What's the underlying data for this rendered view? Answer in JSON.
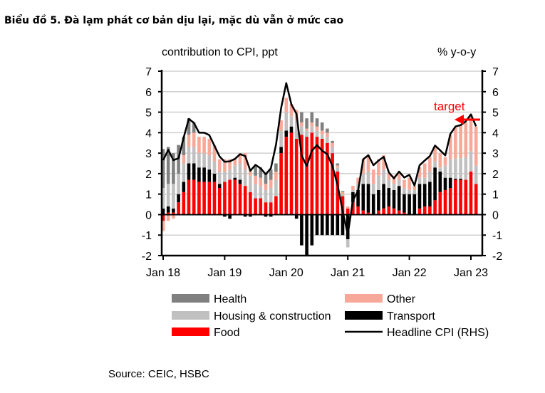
{
  "chart_data": {
    "type": "bar",
    "title": "Biểu đồ 5. Đà lạm phát cơ bản dịu lại, mặc dù vẫn ở mức cao",
    "left_axis_label": "contribution  to CPI, ppt",
    "right_axis_label": "% y-o-y",
    "source": "Source: CEIC, HSBC",
    "annotation": "target",
    "annotation_color": "#ff0000",
    "stacked": true,
    "x_start": "Jan 18",
    "x_end": "Feb 23",
    "x_ticks": [
      "Jan 18",
      "Jan 19",
      "Jan 20",
      "Jan 21",
      "Jan 22",
      "Jan 23"
    ],
    "y_ticks": [
      -2,
      -1,
      0,
      1,
      2,
      3,
      4,
      5,
      6,
      7
    ],
    "ylim": [
      -2,
      7
    ],
    "grid": true,
    "legend_placement": "bottom",
    "series": [
      {
        "name": "Food",
        "color": "#ff0000",
        "values": [
          -0.3,
          0.1,
          0.1,
          0.6,
          1.1,
          1.7,
          1.7,
          1.6,
          1.6,
          1.6,
          1.6,
          1.3,
          1.6,
          1.7,
          1.7,
          1.5,
          1.4,
          1.1,
          0.8,
          0.8,
          0.6,
          0.6,
          0.9,
          3.0,
          3.8,
          4.0,
          3.7,
          3.9,
          3.8,
          4.0,
          3.8,
          3.7,
          3.5,
          3.0,
          2.1,
          0.9,
          0.3,
          0.6,
          0.4,
          0.2,
          0.1,
          0.0,
          0.2,
          0.3,
          0.4,
          0.3,
          0.2,
          0.1,
          0.0,
          0.0,
          0.3,
          0.4,
          0.4,
          0.7,
          1.1,
          1.2,
          1.3,
          1.7,
          1.7,
          1.7,
          2.1,
          1.5
        ]
      },
      {
        "name": "Transport",
        "color": "#000000",
        "values": [
          0.3,
          0.3,
          0.2,
          0.4,
          0.5,
          0.8,
          0.8,
          0.7,
          0.7,
          0.6,
          0.4,
          0.2,
          -0.1,
          -0.2,
          0.1,
          0.2,
          -0.1,
          -0.1,
          0.0,
          0.0,
          -0.1,
          -0.1,
          0.0,
          0.3,
          0.3,
          0.3,
          -0.2,
          -1.5,
          -2.0,
          -1.5,
          -1.0,
          -1.0,
          -1.0,
          -1.0,
          -1.0,
          -1.0,
          -1.2,
          0.5,
          0.8,
          1.3,
          1.4,
          1.0,
          1.0,
          1.2,
          0.9,
          0.9,
          1.2,
          0.9,
          1.0,
          1.0,
          1.2,
          1.1,
          1.2,
          1.6,
          1.0,
          0.6,
          0.5,
          0.05,
          0.05,
          0.0,
          0.0,
          0.0
        ]
      },
      {
        "name": "Housing & construction",
        "color": "#c0c0c0",
        "values": [
          1.0,
          1.1,
          1.2,
          1.0,
          0.9,
          0.8,
          0.8,
          0.7,
          0.7,
          0.7,
          0.6,
          0.6,
          0.5,
          0.5,
          0.6,
          0.8,
          0.8,
          0.8,
          0.7,
          0.6,
          0.6,
          0.7,
          0.8,
          0.8,
          0.9,
          0.5,
          0.9,
          0.4,
          0.3,
          0.3,
          0.3,
          0.2,
          0.3,
          0.3,
          0.2,
          0.1,
          -0.4,
          0.1,
          0.3,
          0.5,
          0.6,
          0.5,
          0.7,
          0.7,
          0.4,
          0.3,
          0.3,
          0.3,
          0.2,
          0.2,
          0.3,
          0.3,
          0.5,
          0.3,
          0.2,
          0.6,
          0.9,
          1.0,
          1.0,
          1.1,
          1.0,
          0.9
        ]
      },
      {
        "name": "Other",
        "color": "#f8a898",
        "values": [
          -0.5,
          -0.3,
          -0.2,
          0.0,
          0.4,
          0.6,
          0.7,
          0.8,
          0.8,
          0.8,
          0.8,
          0.6,
          0.6,
          0.5,
          0.3,
          0.5,
          0.8,
          0.3,
          0.4,
          0.4,
          0.3,
          0.4,
          0.4,
          0.5,
          0.7,
          0.6,
          0.5,
          0.2,
          0.1,
          0.2,
          0.2,
          0.2,
          0.2,
          0.2,
          0.1,
          0.1,
          0.1,
          0.2,
          0.3,
          0.7,
          0.8,
          0.7,
          0.8,
          0.7,
          0.3,
          0.4,
          0.4,
          0.4,
          0.6,
          0.2,
          0.5,
          0.7,
          0.7,
          0.7,
          0.7,
          0.4,
          1.2,
          1.5,
          1.6,
          1.7,
          1.8,
          1.9
        ]
      },
      {
        "name": "Health",
        "color": "#808080",
        "values": [
          1.9,
          1.8,
          1.5,
          1.4,
          0.9,
          0.8,
          0.5,
          0.0,
          0.0,
          0.0,
          0.0,
          0.0,
          0,
          0,
          0,
          0,
          0,
          0,
          0.5,
          0.5,
          0.5,
          0.5,
          0.4,
          0.0,
          0,
          0,
          0,
          0.5,
          0.5,
          0.5,
          0.4,
          0.4,
          0.2,
          0.1,
          0.1,
          0.05,
          0,
          0,
          0,
          0,
          0,
          0,
          0,
          0,
          0,
          0,
          0,
          0,
          0,
          0,
          0,
          0,
          0,
          0,
          0,
          0,
          0,
          0,
          0,
          0,
          0,
          0
        ]
      }
    ],
    "line": {
      "name": "Headline CPI (RHS)",
      "color": "#000000",
      "values": [
        2.66,
        3.16,
        2.66,
        2.75,
        3.76,
        4.67,
        4.48,
        4.0,
        4.0,
        3.88,
        3.36,
        2.84,
        2.58,
        2.6,
        2.72,
        2.95,
        2.86,
        2.14,
        2.43,
        2.26,
        1.97,
        2.26,
        3.41,
        5.2,
        6.42,
        5.38,
        4.92,
        2.89,
        2.37,
        3.12,
        3.39,
        3.12,
        2.95,
        2.37,
        1.45,
        0.17,
        -0.97,
        0.7,
        1.16,
        2.7,
        2.9,
        2.41,
        2.64,
        2.82,
        2.06,
        1.77,
        2.1,
        1.81,
        1.94,
        1.42,
        2.41,
        2.64,
        2.86,
        3.37,
        3.14,
        2.89,
        3.94,
        4.3,
        4.37,
        4.55,
        4.89,
        4.31
      ]
    },
    "legend": [
      "Health",
      "Other",
      "Housing & construction",
      "Transport",
      "Food",
      "Headline CPI (RHS)"
    ]
  }
}
